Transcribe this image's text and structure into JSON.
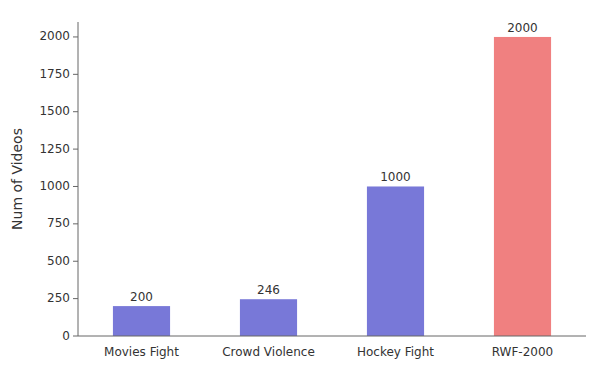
{
  "chart_data": {
    "type": "bar",
    "categories": [
      "Movies Fight",
      "Crowd Violence",
      "Hockey Fight",
      "RWF-2000"
    ],
    "values": [
      200,
      246,
      1000,
      2000
    ],
    "colors": [
      "#7878d8",
      "#7878d8",
      "#7878d8",
      "#f08080"
    ],
    "ylabel": "Num of Videos",
    "ylim": [
      0,
      2100
    ],
    "yticks": [
      0,
      250,
      500,
      750,
      1000,
      1250,
      1500,
      1750,
      2000
    ],
    "data_labels": true,
    "grid": false
  }
}
